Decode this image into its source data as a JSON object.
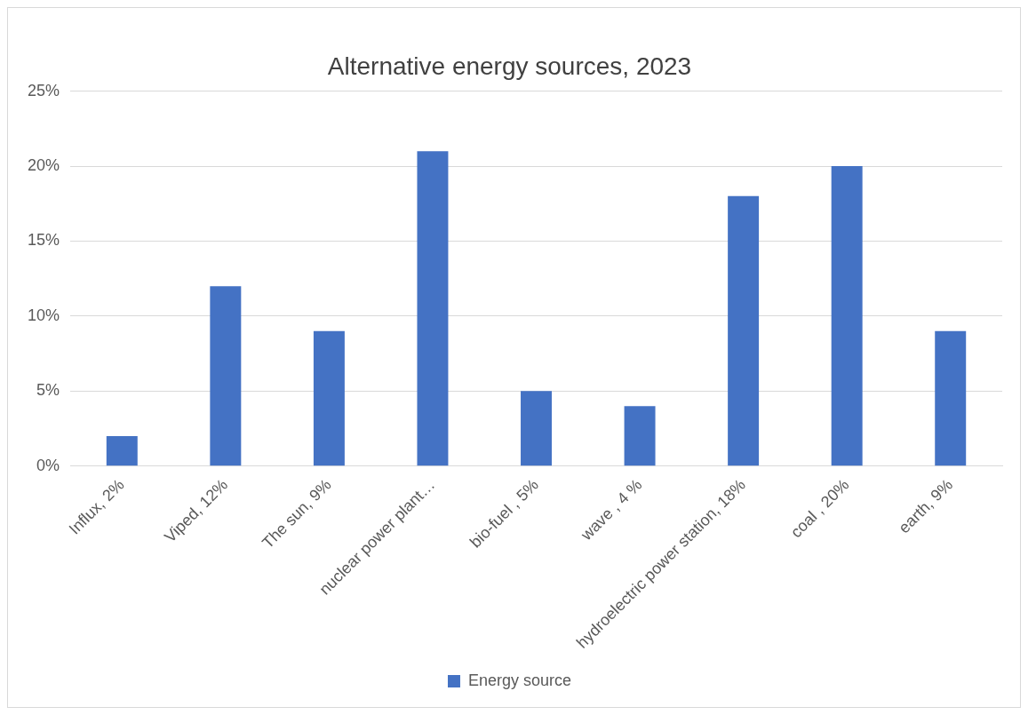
{
  "chart_data": {
    "type": "bar",
    "title": "Alternative energy sources, 2023",
    "categories": [
      "Influx, 2%",
      "Viped, 12%",
      "The sun, 9%",
      "nuclear power plant…",
      "bio-fuel , 5%",
      "wave , 4 %",
      "hydroelectric power station, 18%",
      "coal , 20%",
      "earth, 9%"
    ],
    "series": [
      {
        "name": "Energy source",
        "color": "#4472c4",
        "values": [
          2,
          12,
          9,
          21,
          5,
          4,
          18,
          20,
          9
        ]
      }
    ],
    "ylim": [
      0,
      25
    ],
    "yticks": [
      {
        "value": 0,
        "label": "0%"
      },
      {
        "value": 5,
        "label": "5%"
      },
      {
        "value": 10,
        "label": "10%"
      },
      {
        "value": 15,
        "label": "15%"
      },
      {
        "value": 20,
        "label": "20%"
      },
      {
        "value": 25,
        "label": "25%"
      }
    ],
    "grid": "y",
    "legend": "bottom"
  }
}
